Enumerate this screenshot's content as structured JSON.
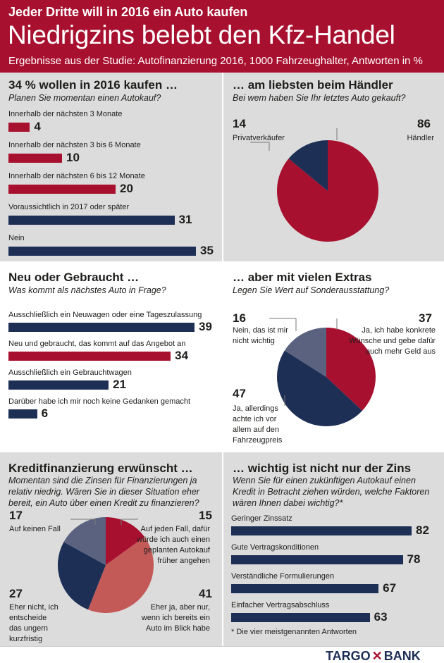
{
  "header": {
    "kicker": "Jeder Dritte will in 2016 ein Auto kaufen",
    "title": "Niedrigzins belebt den Kfz-Handel",
    "subtitle": "Ergebnisse aus der Studie: Autofinanzierung 2016, 1000 Fahrzeughalter, Antworten in %"
  },
  "colors": {
    "red": "#a8102f",
    "navy": "#1e2f56",
    "slate": "#5a6280",
    "salmon": "#c35a58",
    "panel_gray": "#dcdcdc"
  },
  "chart_data": [
    {
      "type": "bar",
      "title": "34 % wollen in 2016 kaufen …",
      "subtitle": "Planen Sie momentan einen Autokauf?",
      "categories": [
        "Innerhalb der nächsten 3 Monate",
        "Innerhalb der nächsten 3 bis 6 Monate",
        "Innerhalb der nächsten 6 bis 12 Monate",
        "Voraussichtlich in 2017 oder später",
        "Nein"
      ],
      "values": [
        4,
        10,
        20,
        31,
        35
      ],
      "value_labels": [
        "4",
        "10",
        "20",
        "31",
        "35"
      ],
      "colors": [
        "#a8102f",
        "#a8102f",
        "#a8102f",
        "#1e2f56",
        "#1e2f56"
      ],
      "max": 35
    },
    {
      "type": "pie",
      "title": "… am liebsten beim Händler",
      "subtitle": "Bei wem haben Sie Ihr letztes Auto gekauft?",
      "slices": [
        {
          "label": "Händler",
          "value": 86,
          "value_label": "86",
          "color": "#a8102f"
        },
        {
          "label": "Privatverkäufer",
          "value": 14,
          "value_label": "14",
          "color": "#1e2f56"
        }
      ]
    },
    {
      "type": "bar",
      "title": "Neu oder Gebraucht …",
      "subtitle": "Was kommt als nächstes Auto in Frage?",
      "categories": [
        "Ausschließlich ein Neuwagen oder eine Tageszulassung",
        "Neu und gebraucht, das kommt auf das Angebot an",
        "Ausschließlich ein Gebrauchtwagen",
        "Darüber habe ich mir noch keine Gedanken gemacht"
      ],
      "values": [
        39,
        34,
        21,
        6
      ],
      "value_labels": [
        "39",
        "34",
        "21",
        "6"
      ],
      "colors": [
        "#1e2f56",
        "#a8102f",
        "#1e2f56",
        "#1e2f56"
      ],
      "max": 39
    },
    {
      "type": "pie",
      "title": "… aber mit vielen Extras",
      "subtitle": "Legen Sie Wert auf Sonderausstattung?",
      "slices": [
        {
          "label": "Ja, ich habe konkrete Wünsche und gebe dafür auch mehr Geld aus",
          "value": 37,
          "value_label": "37",
          "color": "#a8102f"
        },
        {
          "label": "Ja, allerdings achte ich vor allem auf den Fahrzeugpreis",
          "value": 47,
          "value_label": "47",
          "color": "#1e2f56"
        },
        {
          "label": "Nein, das ist mir nicht wichtig",
          "value": 16,
          "value_label": "16",
          "color": "#5a6280"
        }
      ]
    },
    {
      "type": "pie",
      "title": "Kreditfinanzierung erwünscht …",
      "subtitle": "Momentan sind die Zinsen für Finanzierungen ja relativ niedrig. Wären Sie in dieser Situation eher bereit, ein Auto über einen Kredit zu finanzieren?",
      "slices": [
        {
          "label": "Auf jeden Fall, dafür würde ich auch einen geplanten Autokauf früher angehen",
          "value": 15,
          "value_label": "15",
          "color": "#a8102f"
        },
        {
          "label": "Eher ja, aber nur, wenn ich bereits ein Auto im Blick habe",
          "value": 41,
          "value_label": "41",
          "color": "#c35a58"
        },
        {
          "label": "Eher nicht, ich entscheide das ungern kurzfristig",
          "value": 27,
          "value_label": "27",
          "color": "#1e2f56"
        },
        {
          "label": "Auf keinen Fall",
          "value": 17,
          "value_label": "17",
          "color": "#5a6280"
        }
      ]
    },
    {
      "type": "bar",
      "title": "… wichtig ist nicht nur der Zins",
      "subtitle": "Wenn Sie für einen zukünftigen Autokauf einen Kredit in Betracht ziehen würden, welche Faktoren wären Ihnen dabei wichtig?*",
      "categories": [
        "Geringer Zinssatz",
        "Gute Vertragskonditionen",
        "Verständliche Formulierungen",
        "Einfacher Vertragsabschluss"
      ],
      "values": [
        82,
        78,
        67,
        63
      ],
      "value_labels": [
        "82",
        "78",
        "67",
        "63"
      ],
      "colors": [
        "#1e2f56",
        "#1e2f56",
        "#1e2f56",
        "#1e2f56"
      ],
      "max": 82,
      "footnote": "* Die vier meistgenannten Antworten"
    }
  ],
  "footer": {
    "logo_left": "TARGO",
    "logo_mark": "✕",
    "logo_right": "BANK"
  }
}
